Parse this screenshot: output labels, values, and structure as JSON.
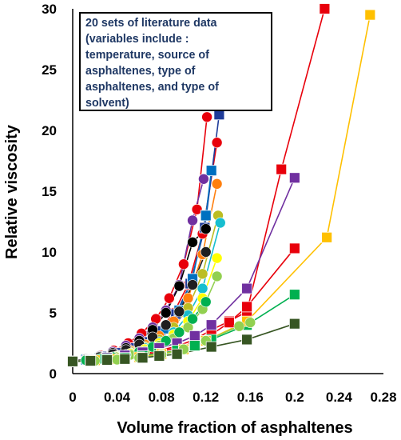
{
  "chart_data": {
    "type": "scatter",
    "xlabel": "Volume fraction of asphaltenes",
    "ylabel": "Relative viscosity",
    "xlim": [
      0,
      0.28
    ],
    "ylim": [
      0,
      30
    ],
    "xticks": [
      "0",
      "0.04",
      "0.08",
      "0.12",
      "0.16",
      "0.2",
      "0.24",
      "0.28"
    ],
    "yticks": [
      "0",
      "5",
      "10",
      "15",
      "20",
      "25",
      "30"
    ],
    "grid": false,
    "annotation": [
      "20 sets of literature data",
      "(variables include :",
      "temperature, source of",
      "asphaltenes, type of",
      "asphaltenes, and type of",
      "solvent)"
    ],
    "series": [
      {
        "color": "#e8000b",
        "marker": "circle",
        "x": [
          0,
          0.012,
          0.025,
          0.037,
          0.05,
          0.062,
          0.075,
          0.087,
          0.1,
          0.112,
          0.121
        ],
        "y": [
          1,
          1.2,
          1.5,
          1.9,
          2.5,
          3.3,
          4.5,
          6.2,
          9.0,
          13.5,
          21.1
        ]
      },
      {
        "color": "#e8000b",
        "marker": "circle",
        "x": [
          0,
          0.013,
          0.026,
          0.039,
          0.052,
          0.065,
          0.078,
          0.091,
          0.104,
          0.117,
          0.13
        ],
        "y": [
          1,
          1.15,
          1.35,
          1.6,
          2.0,
          2.6,
          3.5,
          5.0,
          7.3,
          11.5,
          19.0
        ]
      },
      {
        "color": "#1f3b99",
        "marker": "square",
        "x": [
          0,
          0.013,
          0.026,
          0.04,
          0.053,
          0.066,
          0.079,
          0.093,
          0.106,
          0.119,
          0.132
        ],
        "y": [
          1,
          1.2,
          1.4,
          1.7,
          2.1,
          2.6,
          3.5,
          4.9,
          7.4,
          12.0,
          21.3
        ]
      },
      {
        "color": "#0070c0",
        "marker": "square",
        "x": [
          0,
          0.012,
          0.024,
          0.036,
          0.048,
          0.06,
          0.072,
          0.084,
          0.096,
          0.108,
          0.12,
          0.125
        ],
        "y": [
          1,
          1.15,
          1.3,
          1.5,
          1.8,
          2.2,
          2.8,
          3.7,
          5.2,
          7.8,
          13.0,
          16.7
        ]
      },
      {
        "color": "#7030a0",
        "marker": "circle",
        "x": [
          0,
          0.012,
          0.024,
          0.036,
          0.048,
          0.06,
          0.072,
          0.084,
          0.096,
          0.108,
          0.118
        ],
        "y": [
          1,
          1.2,
          1.45,
          1.8,
          2.3,
          2.9,
          3.8,
          5.2,
          7.3,
          12.6,
          16.0
        ]
      },
      {
        "color": "#ff7f0e",
        "marker": "circle",
        "x": [
          0,
          0.013,
          0.026,
          0.039,
          0.052,
          0.065,
          0.078,
          0.091,
          0.104,
          0.117,
          0.13
        ],
        "y": [
          1,
          1.15,
          1.3,
          1.55,
          1.9,
          2.4,
          3.1,
          4.3,
          6.2,
          9.8,
          15.6
        ]
      },
      {
        "color": "#bcbd22",
        "marker": "circle",
        "x": [
          0,
          0.013,
          0.026,
          0.039,
          0.052,
          0.065,
          0.078,
          0.091,
          0.104,
          0.117,
          0.131
        ],
        "y": [
          1,
          1.15,
          1.3,
          1.5,
          1.8,
          2.2,
          2.8,
          3.8,
          5.4,
          8.2,
          13.0
        ]
      },
      {
        "color": "#17becf",
        "marker": "circle",
        "x": [
          0,
          0.013,
          0.026,
          0.039,
          0.052,
          0.065,
          0.078,
          0.091,
          0.104,
          0.117,
          0.133
        ],
        "y": [
          1,
          1.1,
          1.25,
          1.45,
          1.7,
          2.1,
          2.6,
          3.4,
          4.8,
          7.0,
          12.4
        ]
      },
      {
        "color": "#000000",
        "marker": "circle",
        "x": [
          0,
          0.012,
          0.024,
          0.036,
          0.048,
          0.06,
          0.072,
          0.084,
          0.096,
          0.108,
          0.12
        ],
        "y": [
          1,
          1.2,
          1.4,
          1.7,
          2.1,
          2.7,
          3.6,
          5.0,
          7.2,
          10.8,
          11.9
        ]
      },
      {
        "color": "#1f1f1f",
        "marker": "circle",
        "x": [
          0,
          0.012,
          0.024,
          0.036,
          0.048,
          0.06,
          0.072,
          0.084,
          0.096,
          0.108,
          0.12
        ],
        "y": [
          1,
          1.15,
          1.35,
          1.6,
          1.95,
          2.4,
          3.0,
          4.0,
          5.1,
          7.3,
          10.0
        ]
      },
      {
        "color": "#ffff00",
        "marker": "circle",
        "x": [
          0,
          0.013,
          0.026,
          0.039,
          0.052,
          0.065,
          0.078,
          0.091,
          0.104,
          0.117,
          0.13
        ],
        "y": [
          1,
          1.1,
          1.25,
          1.4,
          1.65,
          2.0,
          2.5,
          3.2,
          4.3,
          6.2,
          9.5
        ]
      },
      {
        "color": "#92d050",
        "marker": "circle",
        "x": [
          0,
          0.013,
          0.026,
          0.039,
          0.052,
          0.065,
          0.078,
          0.091,
          0.104,
          0.117,
          0.13
        ],
        "y": [
          1,
          1.1,
          1.2,
          1.35,
          1.55,
          1.85,
          2.3,
          2.9,
          3.8,
          5.3,
          8.0
        ]
      },
      {
        "color": "#00b050",
        "marker": "circle",
        "x": [
          0,
          0.012,
          0.024,
          0.036,
          0.048,
          0.06,
          0.072,
          0.084,
          0.096,
          0.108,
          0.12
        ],
        "y": [
          1,
          1.1,
          1.2,
          1.35,
          1.55,
          1.8,
          2.2,
          2.7,
          3.4,
          4.5,
          5.9
        ]
      },
      {
        "color": "#e8000b",
        "marker": "square",
        "x": [
          0,
          0.016,
          0.031,
          0.047,
          0.063,
          0.078,
          0.094,
          0.11,
          0.125,
          0.141,
          0.157,
          0.188,
          0.227
        ],
        "y": [
          1,
          1.1,
          1.25,
          1.4,
          1.6,
          1.9,
          2.25,
          2.8,
          3.6,
          4.3,
          5.1,
          16.8,
          30.0
        ]
      },
      {
        "color": "#e8000b",
        "marker": "square",
        "x": [
          0,
          0.016,
          0.031,
          0.047,
          0.063,
          0.078,
          0.094,
          0.11,
          0.125,
          0.141,
          0.157,
          0.2
        ],
        "y": [
          1,
          1.1,
          1.2,
          1.35,
          1.55,
          1.8,
          2.1,
          2.6,
          3.2,
          4.2,
          5.5,
          10.3
        ]
      },
      {
        "color": "#7030a0",
        "marker": "square",
        "x": [
          0,
          0.016,
          0.031,
          0.047,
          0.063,
          0.078,
          0.094,
          0.11,
          0.125,
          0.157,
          0.2
        ],
        "y": [
          1,
          1.15,
          1.3,
          1.5,
          1.75,
          2.1,
          2.5,
          3.1,
          4.0,
          7.0,
          16.1
        ]
      },
      {
        "color": "#00b050",
        "marker": "square",
        "x": [
          0,
          0.016,
          0.031,
          0.047,
          0.063,
          0.078,
          0.094,
          0.11,
          0.125,
          0.157,
          0.2
        ],
        "y": [
          1,
          1.1,
          1.2,
          1.3,
          1.45,
          1.65,
          1.9,
          2.3,
          2.8,
          4.0,
          6.5
        ]
      },
      {
        "color": "#ffc000",
        "marker": "square",
        "x": [
          0,
          0.02,
          0.04,
          0.06,
          0.08,
          0.1,
          0.12,
          0.157,
          0.229,
          0.268
        ],
        "y": [
          1,
          1.1,
          1.2,
          1.35,
          1.6,
          2.0,
          2.7,
          4.3,
          11.2,
          29.5
        ]
      },
      {
        "color": "#92d050",
        "marker": "circle",
        "x": [
          0,
          0.02,
          0.04,
          0.06,
          0.08,
          0.1,
          0.12,
          0.15,
          0.16
        ],
        "y": [
          1,
          1.05,
          1.15,
          1.3,
          1.55,
          2.0,
          2.7,
          3.9,
          4.2
        ]
      },
      {
        "color": "#375623",
        "marker": "square",
        "x": [
          0,
          0.016,
          0.031,
          0.047,
          0.063,
          0.078,
          0.094,
          0.125,
          0.157,
          0.2
        ],
        "y": [
          1,
          1.05,
          1.12,
          1.2,
          1.3,
          1.45,
          1.6,
          2.2,
          2.8,
          4.1
        ]
      }
    ]
  }
}
